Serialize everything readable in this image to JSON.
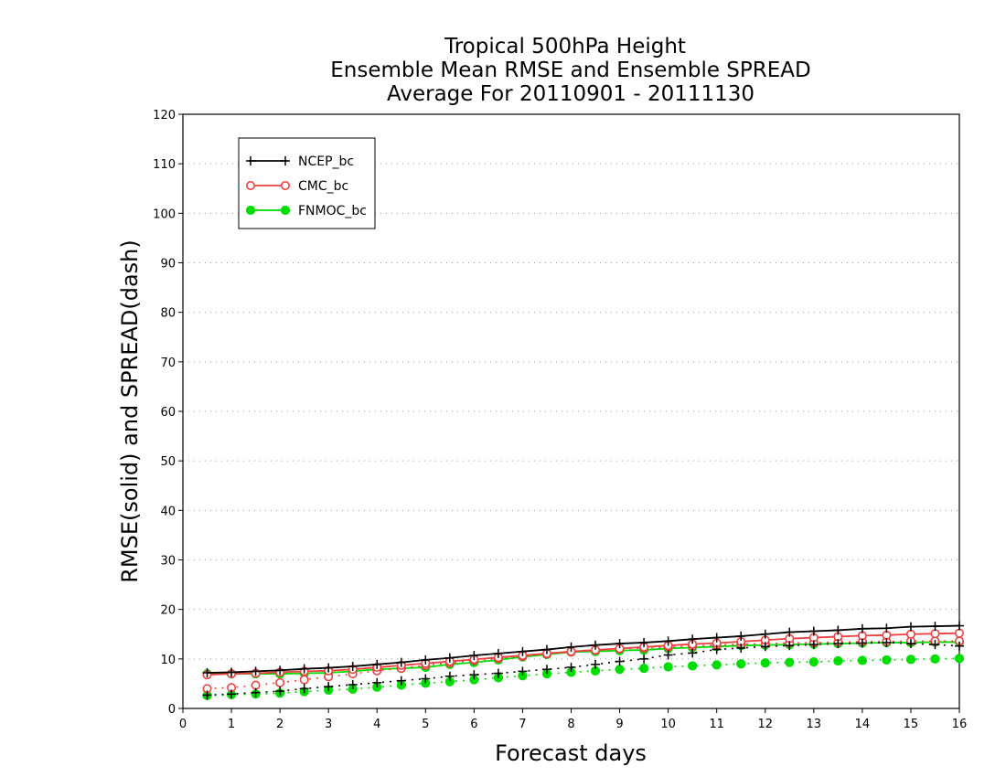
{
  "chart_data": {
    "type": "line",
    "title": [
      "Tropical 500hPa Height",
      "Ensemble Mean RMSE and Ensemble SPREAD",
      "Average For 20110901 - 20111130"
    ],
    "xlabel": "Forecast days",
    "ylabel": "RMSE(solid) and SPREAD(dash)",
    "xlim": [
      0,
      16
    ],
    "ylim": [
      0,
      120
    ],
    "xticks": [
      0,
      1,
      2,
      3,
      4,
      5,
      6,
      7,
      8,
      9,
      10,
      11,
      12,
      13,
      14,
      15,
      16
    ],
    "yticks": [
      0,
      10,
      20,
      30,
      40,
      50,
      60,
      70,
      80,
      90,
      100,
      110,
      120
    ],
    "grid": "horizontal dotted",
    "legend_position": "top-left",
    "x": [
      0.5,
      1,
      1.5,
      2,
      2.5,
      3,
      3.5,
      4,
      4.5,
      5,
      5.5,
      6,
      6.5,
      7,
      7.5,
      8,
      8.5,
      9,
      9.5,
      10,
      10.5,
      11,
      11.5,
      12,
      12.5,
      13,
      13.5,
      14,
      14.5,
      15,
      15.5,
      16
    ],
    "series": [
      {
        "name": "NCEP_bc",
        "color": "#000000",
        "marker": "plus",
        "rmse": [
          7.2,
          7.3,
          7.5,
          7.7,
          8.0,
          8.2,
          8.5,
          8.9,
          9.3,
          9.8,
          10.2,
          10.7,
          11.1,
          11.5,
          11.9,
          12.4,
          12.8,
          13.1,
          13.3,
          13.6,
          14.0,
          14.3,
          14.6,
          15.0,
          15.4,
          15.6,
          15.8,
          16.1,
          16.2,
          16.5,
          16.6,
          16.7
        ],
        "spread": [
          2.7,
          2.9,
          3.2,
          3.5,
          4.0,
          4.4,
          4.8,
          5.2,
          5.6,
          6.0,
          6.5,
          6.8,
          7.1,
          7.5,
          7.9,
          8.3,
          8.9,
          9.5,
          10.0,
          10.8,
          11.2,
          11.9,
          12.2,
          12.5,
          12.7,
          12.9,
          13.1,
          13.2,
          13.3,
          13.1,
          12.9,
          12.6
        ]
      },
      {
        "name": "CMC_bc",
        "color": "#ee4040",
        "marker": "open-circle",
        "rmse": [
          6.8,
          7.0,
          7.1,
          7.3,
          7.5,
          7.6,
          7.9,
          8.3,
          8.7,
          9.1,
          9.5,
          9.9,
          10.3,
          10.7,
          11.1,
          11.5,
          11.8,
          12.1,
          12.4,
          12.7,
          13.0,
          13.2,
          13.5,
          13.8,
          14.1,
          14.3,
          14.5,
          14.7,
          14.8,
          15.0,
          15.1,
          15.2
        ],
        "spread": [
          4.0,
          4.2,
          4.7,
          5.2,
          5.8,
          6.4,
          7.0,
          7.6,
          8.1,
          8.7,
          9.2,
          9.7,
          10.1,
          10.5,
          11.0,
          11.4,
          11.7,
          12.0,
          12.2,
          12.4,
          12.6,
          12.8,
          13.0,
          13.1,
          13.2,
          13.3,
          13.4,
          13.5,
          13.5,
          13.6,
          13.6,
          13.6
        ]
      },
      {
        "name": "FNMOC_bc",
        "color": "#00dd00",
        "marker": "filled-circle",
        "rmse": [
          7.0,
          7.0,
          7.0,
          7.0,
          7.1,
          7.2,
          7.5,
          7.9,
          8.1,
          8.3,
          8.9,
          9.3,
          9.8,
          10.4,
          10.9,
          11.4,
          11.5,
          11.7,
          11.8,
          12.1,
          12.3,
          12.5,
          12.7,
          12.8,
          12.9,
          13.0,
          13.1,
          13.2,
          13.3,
          13.3,
          13.4,
          13.4
        ],
        "spread": [
          2.6,
          2.8,
          2.9,
          3.1,
          3.4,
          3.7,
          3.9,
          4.3,
          4.7,
          5.1,
          5.4,
          5.8,
          6.2,
          6.6,
          7.0,
          7.3,
          7.6,
          7.9,
          8.1,
          8.4,
          8.6,
          8.8,
          9.0,
          9.2,
          9.3,
          9.4,
          9.6,
          9.7,
          9.8,
          9.9,
          10.0,
          10.1
        ]
      }
    ]
  }
}
